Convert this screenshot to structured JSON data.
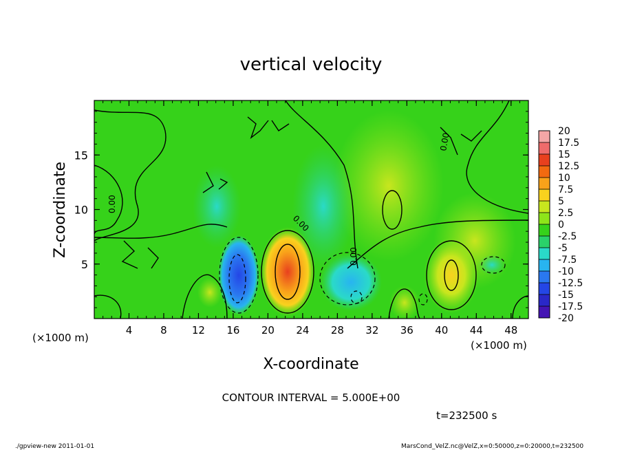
{
  "chart_data": {
    "type": "heatmap",
    "title": "vertical velocity",
    "xlabel": "X-coordinate",
    "ylabel": "Z-coordinate",
    "x_unit_left": "(×1000 m)",
    "x_unit_right": "(×1000 m)",
    "xlim": [
      0,
      50
    ],
    "ylim": [
      0,
      20
    ],
    "x_ticks": [
      "4",
      "8",
      "12",
      "16",
      "20",
      "24",
      "28",
      "32",
      "36",
      "40",
      "44",
      "48"
    ],
    "x_tick_values": [
      4,
      8,
      12,
      16,
      20,
      24,
      28,
      32,
      36,
      40,
      44,
      48
    ],
    "y_ticks": [
      "5",
      "10",
      "15"
    ],
    "y_tick_values": [
      5,
      10,
      15
    ],
    "colorbar": {
      "labels": [
        "20",
        "17.5",
        "15",
        "12.5",
        "10",
        "7.5",
        "5",
        "2.5",
        "0",
        "-2.5",
        "-5",
        "-7.5",
        "-10",
        "-12.5",
        "-15",
        "-17.5",
        "-20"
      ],
      "values": [
        20,
        17.5,
        15,
        12.5,
        10,
        7.5,
        5,
        2.5,
        0,
        -2.5,
        -5,
        -7.5,
        -10,
        -12.5,
        -15,
        -17.5,
        -20
      ],
      "colors": [
        "#f4a6a6",
        "#ef6b6b",
        "#e8401e",
        "#f26a10",
        "#f9a21a",
        "#f9d21e",
        "#c8e61e",
        "#8ee41a",
        "#36d21a",
        "#2ad26a",
        "#2adac8",
        "#28b4f0",
        "#2a78f0",
        "#2446e6",
        "#2a28c8",
        "#4414b4",
        "#6a14aa"
      ]
    },
    "features": [
      {
        "kind": "updraft",
        "x": 22,
        "z": 3.5,
        "value": 15
      },
      {
        "kind": "downdraft",
        "x": 16.5,
        "z": 3,
        "value": -12
      },
      {
        "kind": "downdraft",
        "x": 29,
        "z": 3,
        "value": -8
      },
      {
        "kind": "updraft",
        "x": 41,
        "z": 3.5,
        "value": 7
      },
      {
        "kind": "updraft",
        "x": 34,
        "z": 10,
        "value": 5
      }
    ],
    "contour_labels": [
      "0.00",
      "0.00",
      "0.00",
      "0.00"
    ],
    "contour_interval_text": "CONTOUR INTERVAL = 5.000E+00",
    "time_text": "t=232500  s"
  },
  "footer": {
    "left": "./gpview-new   2011-01-01",
    "right": "MarsCond_VelZ.nc@VelZ,x=0:50000,z=0:20000,t=232500"
  },
  "colors": {
    "background_field": "#36d21a",
    "contour_line": "#000000"
  }
}
